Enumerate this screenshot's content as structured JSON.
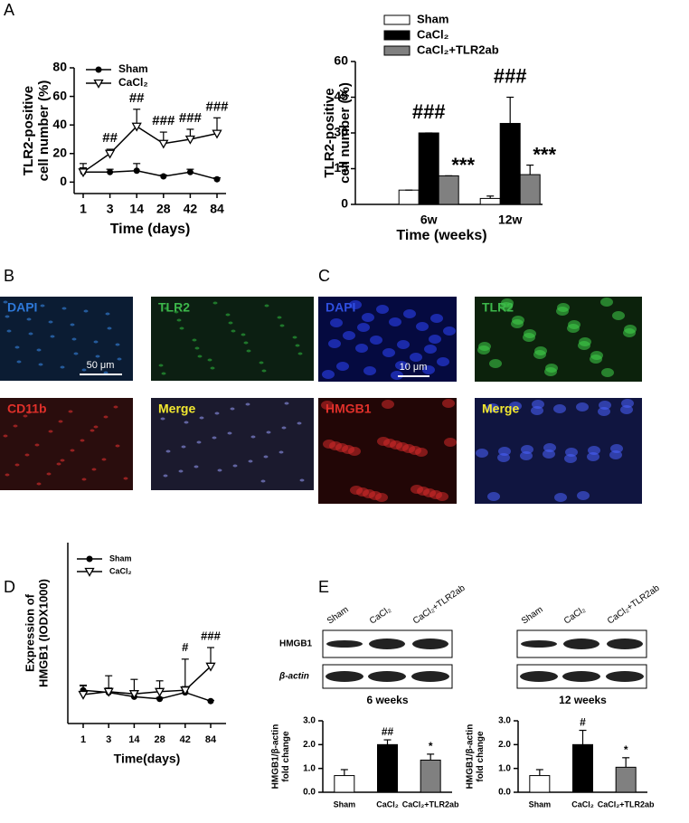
{
  "panel_labels": [
    "A",
    "B",
    "C",
    "D",
    "E"
  ],
  "micrographs": [
    {
      "label": "DAPI"
    },
    {
      "label": "TLR2"
    },
    {
      "label": "CD11b"
    },
    {
      "label": "Merge"
    },
    {
      "label": "DAPI"
    },
    {
      "label": "TLR2"
    },
    {
      "label": "HMGB1"
    },
    {
      "label": "Merge"
    }
  ],
  "scale_bars": [
    "50 μm",
    "10 μm"
  ],
  "blots": [
    {
      "lanes": [
        "Sham",
        "CaCl₂",
        "CaCl₂+TLR2ab"
      ],
      "rows": [
        "HMGB1",
        "β-actin"
      ]
    },
    {
      "lanes": [
        "Sham",
        "CaCl₂",
        "CaCl₂+TLR2ab"
      ]
    }
  ],
  "chart_data": [
    {
      "type": "line",
      "ylabel": [
        "TLR2-positive",
        "cell number (%)"
      ],
      "xlabel": "Time (days)",
      "categories": [
        "1",
        "3",
        "14",
        "28",
        "42",
        "84"
      ],
      "ylim": [
        -8,
        80
      ],
      "yticks": [
        0,
        20,
        40,
        60,
        80
      ],
      "series": [
        {
          "name": "Sham",
          "color": "#000000",
          "marker": "circle",
          "values": [
            7,
            7,
            8,
            4,
            7,
            2
          ],
          "errors": [
            3,
            2,
            5,
            1,
            2,
            1
          ]
        },
        {
          "name": "CaCl₂",
          "color": "#000000",
          "marker": "triangle-down",
          "values": [
            7,
            20,
            39,
            27,
            30,
            34
          ],
          "errors": [
            6,
            3,
            12,
            8,
            7,
            11
          ],
          "annotations": [
            null,
            "##",
            "##",
            "###",
            "###",
            "###"
          ]
        }
      ]
    },
    {
      "type": "bar",
      "ylabel": [
        "TLR2-positive",
        "cell number (%)"
      ],
      "xlabel": "Time (weeks)",
      "categories": [
        "6w",
        "12w"
      ],
      "ylim": [
        0,
        60
      ],
      "yticks": [
        0,
        15,
        30,
        45,
        60
      ],
      "series": [
        {
          "name": "Sham",
          "color": "#ffffff",
          "values": [
            6,
            2.5
          ],
          "errors": [
            0,
            1
          ]
        },
        {
          "name": "CaCl₂",
          "color": "#000000",
          "values": [
            30,
            34
          ],
          "errors": [
            0,
            11
          ],
          "annotations": [
            "###",
            "###"
          ]
        },
        {
          "name": "CaCl₂+TLR2ab",
          "color": "#808080",
          "values": [
            12,
            12.5
          ],
          "errors": [
            0,
            4
          ],
          "annotations": [
            "***",
            "***"
          ]
        }
      ]
    },
    {
      "type": "line",
      "ylabel": [
        "Expression of",
        "HMGB1  (IODX1000)"
      ],
      "xlabel": "Time(days)",
      "categories": [
        "1",
        "3",
        "14",
        "28",
        "42",
        "84"
      ],
      "ylim": [
        -29,
        221
      ],
      "series": [
        {
          "name": "Sham",
          "color": "#000000",
          "marker": "circle",
          "values": [
            17,
            14,
            8,
            5,
            14,
            2
          ],
          "errors": [
            7,
            6,
            6,
            2,
            8,
            1
          ]
        },
        {
          "name": "CaCl₂",
          "color": "#000000",
          "marker": "triangle-down",
          "values": [
            11,
            15,
            12,
            15,
            17,
            50
          ],
          "errors": [
            12,
            22,
            20,
            15,
            43,
            26
          ],
          "annotations": [
            null,
            null,
            null,
            null,
            "#",
            "###"
          ]
        }
      ]
    },
    {
      "type": "bar",
      "title": "6 weeks",
      "ylabel": [
        "HMGB1/β-actin",
        "fold change"
      ],
      "categories": [
        "Sham",
        "CaCl₂",
        "CaCl₂+TLR2ab"
      ],
      "ylim": [
        0,
        3
      ],
      "yticks": [
        {
          "value": 0,
          "label": "0.0"
        },
        {
          "value": 1,
          "label": "1.0"
        },
        {
          "value": 2,
          "label": "2.0"
        },
        {
          "value": 3,
          "label": "3.0"
        }
      ],
      "series": [
        {
          "colors": [
            "#ffffff",
            "#000000",
            "#808080"
          ],
          "values": [
            0.7,
            2.0,
            1.35
          ],
          "errors": [
            0.25,
            0.2,
            0.25
          ],
          "annotations": [
            null,
            "##",
            "*"
          ]
        }
      ]
    },
    {
      "type": "bar",
      "title": "12 weeks",
      "ylabel": [
        "HMGB1/β-actin",
        "fold change"
      ],
      "categories": [
        "Sham",
        "CaCl₂",
        "CaCl₂+TLR2ab"
      ],
      "ylim": [
        0,
        3
      ],
      "yticks": [
        {
          "value": 0,
          "label": "0.0"
        },
        {
          "value": 1,
          "label": "1.0"
        },
        {
          "value": 2,
          "label": "2.0"
        },
        {
          "value": 3,
          "label": "3.0"
        }
      ],
      "series": [
        {
          "colors": [
            "#ffffff",
            "#000000",
            "#808080"
          ],
          "values": [
            0.7,
            2.0,
            1.05
          ],
          "errors": [
            0.25,
            0.6,
            0.4
          ],
          "annotations": [
            null,
            "#",
            "*"
          ]
        }
      ]
    }
  ]
}
